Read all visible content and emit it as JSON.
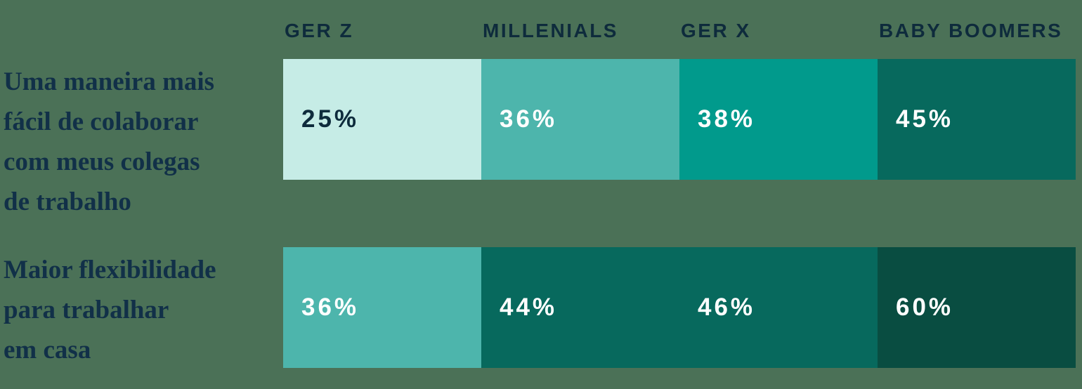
{
  "background_color": "#4B7157",
  "navy_text_color": "#0E2B3C",
  "chart_data": {
    "type": "table",
    "description": "Comparison of remote-work benefits by generation (percent agreeing), shown as two rows of four equal colored cells",
    "columns": [
      "GER Z",
      "MILLENIALS",
      "GER X",
      "BABY BOOMERS"
    ],
    "legend_position": "top",
    "grid": false,
    "rows": [
      {
        "label": "Uma maneira mais fácil de colaborar com meus colegas de trabalho",
        "label_lines": [
          "Uma maneira mais",
          "fácil de colaborar",
          "com meus colegas",
          "de trabalho"
        ],
        "values": [
          25,
          36,
          38,
          45
        ],
        "value_labels": [
          "25%",
          "36%",
          "38%",
          "45%"
        ],
        "cell_colors": [
          "#C6ECE6",
          "#4DB5AC",
          "#019A8C",
          "#07695D"
        ],
        "value_colors": [
          "#0E2B3C",
          "#FFFFFF",
          "#FFFFFF",
          "#FFFFFF"
        ]
      },
      {
        "label": "Maior flexibilidade para trabalhar em casa",
        "label_lines": [
          "Maior flexibilidade",
          "para trabalhar",
          "em casa"
        ],
        "values": [
          36,
          44,
          46,
          60
        ],
        "value_labels": [
          "36%",
          "44%",
          "46%",
          "60%"
        ],
        "cell_colors": [
          "#4DB5AC",
          "#07695D",
          "#07695D",
          "#094D41"
        ],
        "value_colors": [
          "#FFFFFF",
          "#FFFFFF",
          "#FFFFFF",
          "#FFFFFF"
        ]
      }
    ]
  }
}
